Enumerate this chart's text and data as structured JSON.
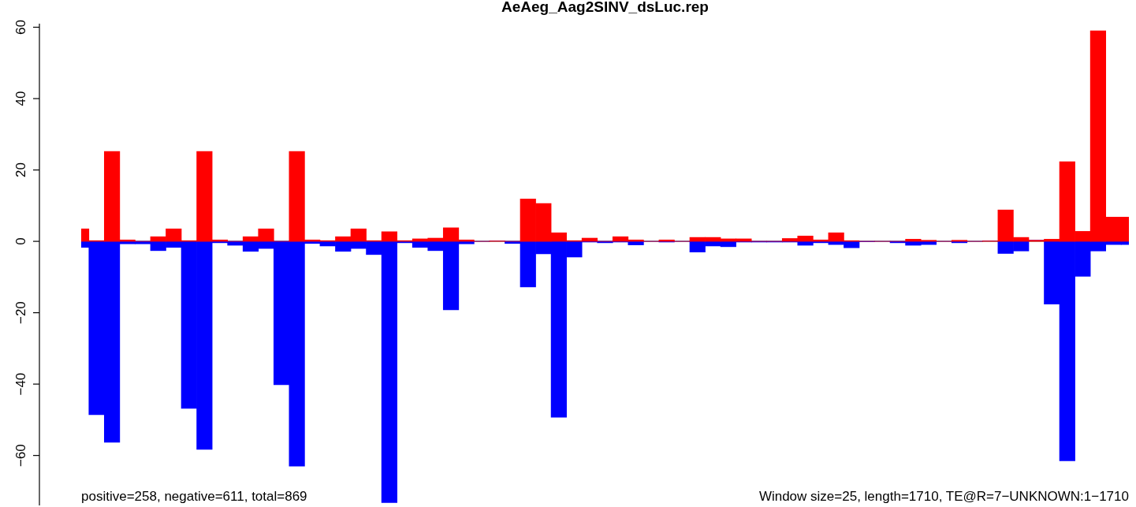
{
  "chart_data": {
    "type": "bar",
    "title": "AeAeg_Aag2SINV_dsLuc.rep",
    "categories": [
      null,
      null,
      null,
      null,
      null,
      null,
      null,
      null,
      null,
      null,
      null,
      null,
      null,
      null,
      null,
      null,
      null,
      null,
      null,
      null,
      null,
      null,
      null,
      null,
      null,
      null,
      null,
      null,
      null,
      null,
      null,
      null,
      null,
      null,
      null,
      null,
      null,
      null,
      null,
      null,
      null,
      null,
      null,
      null,
      null,
      null,
      null,
      null,
      null,
      null,
      null,
      null,
      null,
      null,
      null,
      null,
      null,
      null,
      null,
      null,
      null,
      null,
      null,
      null,
      null,
      null,
      null,
      null,
      null
    ],
    "series": [
      {
        "color": "#ff0000",
        "values": [
          3.5,
          0.2,
          25.2,
          0.4,
          0,
          1.3,
          3.5,
          0.2,
          25.2,
          0.4,
          0,
          1.3,
          3.5,
          0,
          25.2,
          0.4,
          0.2,
          1.3,
          3.5,
          0.2,
          2.7,
          0.2,
          0.7,
          0.9,
          3.8,
          0.4,
          0,
          0.1,
          0,
          11.9,
          10.6,
          2.4,
          0.2,
          0.9,
          0,
          1.3,
          0.4,
          0,
          0.4,
          0,
          1.1,
          1.1,
          0.7,
          0.7,
          0,
          0,
          0.8,
          1.5,
          0.4,
          2.4,
          0.2,
          0,
          0,
          0,
          0.6,
          0.3,
          0,
          0.3,
          0,
          0.1,
          8.8,
          1.1,
          0.3,
          0.6,
          22.3,
          2.8,
          59,
          6.8,
          6.8
        ]
      },
      {
        "color": "#0000ff",
        "values": [
          -1.7,
          -48.6,
          -56.3,
          -0.7,
          -0.7,
          -2.6,
          -1.7,
          -46.8,
          -58.3,
          -0.4,
          -1.1,
          -2.8,
          -2.0,
          -40.2,
          -63.0,
          -0.6,
          -1.3,
          -2.8,
          -2.0,
          -3.7,
          -73.2,
          -0.4,
          -1.7,
          -2.6,
          -19.2,
          -0.7,
          0,
          0,
          -0.6,
          -12.8,
          -3.5,
          -49.3,
          -4.4,
          -0.2,
          -0.4,
          -0.2,
          -1.0,
          0,
          -0.2,
          0,
          -3.0,
          -1.3,
          -1.5,
          -0.2,
          -0.2,
          -0.2,
          -0.2,
          -1.1,
          -0.4,
          -0.9,
          -1.8,
          -0.1,
          0,
          -0.4,
          -1.1,
          -0.9,
          0,
          -0.4,
          0,
          0,
          -3.4,
          -2.7,
          0,
          -17.6,
          -61.5,
          -9.8,
          -2.7,
          -0.9,
          -0.9
        ]
      }
    ],
    "stacked": true,
    "ylim": [
      -74,
      61
    ],
    "yticks": [
      -60,
      -40,
      -20,
      0,
      20,
      40,
      60
    ],
    "tick_labels": "y",
    "ref_lines": [
      {
        "axis": "y",
        "value": 0,
        "color": "#808080"
      }
    ],
    "annotations": [
      "positive=258, negative=611, total=869",
      "Window size=25, length=1710, TE@R=7−UNKNOWN:1−1710"
    ]
  }
}
